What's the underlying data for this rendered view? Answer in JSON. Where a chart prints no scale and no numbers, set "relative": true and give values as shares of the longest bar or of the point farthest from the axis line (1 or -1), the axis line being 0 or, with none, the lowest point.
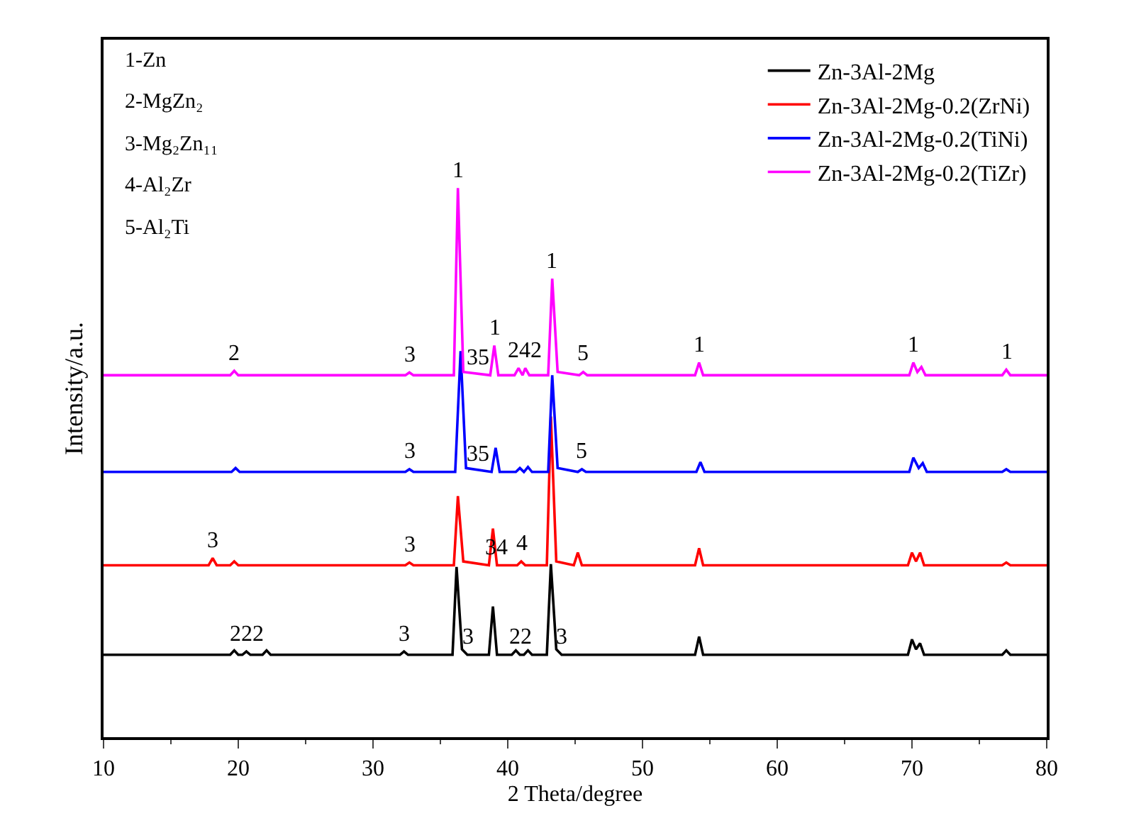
{
  "chart_data": {
    "type": "line",
    "relative": true,
    "xlabel": "2 Theta/degree",
    "ylabel": "Intensity/a.u.",
    "xlim": [
      10,
      80
    ],
    "xticks": [
      10,
      20,
      30,
      40,
      50,
      60,
      70,
      80
    ],
    "grid": false,
    "legend": "top right",
    "marker": "none",
    "line_style": "solid",
    "series": [
      {
        "name": "Zn-3Al-2Mg",
        "color": "#000000",
        "x": [
          10,
          19.4,
          19.7,
          20.0,
          20.3,
          20.6,
          20.9,
          21.8,
          22.1,
          22.4,
          32.0,
          32.3,
          32.6,
          35.9,
          36.2,
          36.6,
          37.0,
          38.6,
          38.9,
          39.2,
          40.3,
          40.6,
          40.9,
          41.2,
          41.5,
          41.8,
          42.9,
          43.2,
          43.6,
          44.0,
          53.9,
          54.2,
          54.5,
          69.7,
          70.0,
          70.3,
          70.6,
          70.9,
          76.7,
          77.0,
          77.3,
          80
        ],
        "values": [
          0.15,
          0.15,
          0.158,
          0.15,
          0.15,
          0.156,
          0.15,
          0.15,
          0.158,
          0.15,
          0.15,
          0.156,
          0.15,
          0.15,
          0.31,
          0.16,
          0.15,
          0.15,
          0.238,
          0.15,
          0.15,
          0.158,
          0.15,
          0.15,
          0.158,
          0.15,
          0.15,
          0.315,
          0.16,
          0.15,
          0.15,
          0.183,
          0.15,
          0.15,
          0.178,
          0.16,
          0.171,
          0.15,
          0.15,
          0.158,
          0.15,
          0.15
        ]
      },
      {
        "name": "Zn-3Al-2Mg-0.2(ZrNi)",
        "color": "#ff0000",
        "x": [
          10,
          17.8,
          18.1,
          18.4,
          19.4,
          19.7,
          20.0,
          32.4,
          32.7,
          33.0,
          36.0,
          36.3,
          36.7,
          38.6,
          38.9,
          39.2,
          40.7,
          41.0,
          41.3,
          42.9,
          43.2,
          43.6,
          44.9,
          45.2,
          45.5,
          53.9,
          54.2,
          54.5,
          69.7,
          70.0,
          70.3,
          70.6,
          70.9,
          76.7,
          77.0,
          77.3,
          80
        ],
        "values": [
          0.313,
          0.313,
          0.326,
          0.313,
          0.313,
          0.32,
          0.313,
          0.313,
          0.318,
          0.313,
          0.313,
          0.439,
          0.32,
          0.313,
          0.38,
          0.313,
          0.313,
          0.32,
          0.313,
          0.313,
          0.584,
          0.32,
          0.313,
          0.336,
          0.313,
          0.313,
          0.344,
          0.313,
          0.313,
          0.336,
          0.32,
          0.336,
          0.313,
          0.313,
          0.318,
          0.313,
          0.313
        ]
      },
      {
        "name": "Zn-3Al-2Mg-0.2(TiNi)",
        "color": "#0000ff",
        "x": [
          10,
          19.5,
          19.8,
          20.1,
          32.4,
          32.7,
          33.0,
          36.1,
          36.5,
          36.9,
          38.8,
          39.1,
          39.4,
          40.6,
          40.9,
          41.2,
          41.5,
          41.8,
          43.0,
          43.3,
          43.7,
          45.2,
          45.5,
          45.8,
          54.0,
          54.3,
          54.6,
          69.8,
          70.1,
          70.5,
          70.8,
          71.1,
          76.7,
          77.0,
          77.3,
          80
        ],
        "values": [
          0.483,
          0.483,
          0.49,
          0.483,
          0.483,
          0.488,
          0.483,
          0.483,
          0.703,
          0.49,
          0.483,
          0.527,
          0.483,
          0.483,
          0.49,
          0.483,
          0.492,
          0.483,
          0.483,
          0.659,
          0.49,
          0.483,
          0.488,
          0.483,
          0.483,
          0.501,
          0.483,
          0.483,
          0.509,
          0.49,
          0.499,
          0.483,
          0.483,
          0.488,
          0.483,
          0.483
        ]
      },
      {
        "name": "Zn-3Al-2Mg-0.2(TiZr)",
        "color": "#ff00ff",
        "x": [
          10,
          19.4,
          19.7,
          20.0,
          32.4,
          32.7,
          33.0,
          36.0,
          36.3,
          36.7,
          38.7,
          39.0,
          39.3,
          40.5,
          40.8,
          41.1,
          41.3,
          41.6,
          43.0,
          43.3,
          43.7,
          45.3,
          45.6,
          45.9,
          53.9,
          54.2,
          54.5,
          69.8,
          70.1,
          70.4,
          70.7,
          71.0,
          76.7,
          77.0,
          77.3,
          80
        ],
        "values": [
          0.659,
          0.659,
          0.667,
          0.659,
          0.659,
          0.664,
          0.659,
          0.659,
          1,
          0.665,
          0.659,
          0.713,
          0.659,
          0.659,
          0.672,
          0.659,
          0.672,
          0.659,
          0.659,
          0.835,
          0.665,
          0.659,
          0.665,
          0.659,
          0.659,
          0.682,
          0.659,
          0.659,
          0.682,
          0.665,
          0.674,
          0.659,
          0.659,
          0.669,
          0.659,
          0.659
        ]
      }
    ],
    "annotations": [
      "1-Zn",
      "2-MgZn₂",
      "3-Mg₂Zn₁₁",
      "4-Al₂Zr",
      "5-Al₂Ti",
      {
        "text": "2",
        "x": 19.7,
        "y": 0.667
      },
      {
        "text": "3",
        "x": 32.7,
        "y": 0.664
      },
      {
        "text": "1",
        "x": 36.3,
        "y": 1
      },
      {
        "text": "35",
        "x": 37.8,
        "y": 0.659
      },
      {
        "text": "1",
        "x": 39.0,
        "y": 0.713
      },
      {
        "text": "242",
        "x": 41.3,
        "y": 0.672
      },
      {
        "text": "1",
        "x": 43.3,
        "y": 0.835
      },
      {
        "text": "5",
        "x": 45.6,
        "y": 0.665
      },
      {
        "text": "1",
        "x": 54.2,
        "y": 0.682
      },
      {
        "text": "1",
        "x": 70.1,
        "y": 0.682
      },
      {
        "text": "1",
        "x": 77.0,
        "y": 0.669
      },
      {
        "text": "3",
        "x": 32.7,
        "y": 0.488
      },
      {
        "text": "35",
        "x": 37.8,
        "y": 0.483
      },
      {
        "text": "5",
        "x": 45.5,
        "y": 0.488
      },
      {
        "text": "3",
        "x": 18.1,
        "y": 0.326
      },
      {
        "text": "3",
        "x": 32.7,
        "y": 0.318
      },
      {
        "text": "34",
        "x": 39.2,
        "y": 0.313
      },
      {
        "text": "4",
        "x": 41.0,
        "y": 0.32
      },
      {
        "text": "222",
        "x": 20.6,
        "y": 0.156
      },
      {
        "text": "3",
        "x": 32.3,
        "y": 0.156
      },
      {
        "text": "3",
        "x": 37.0,
        "y": 0.15
      },
      {
        "text": "22",
        "x": 40.9,
        "y": 0.15
      },
      {
        "text": "3",
        "x": 44.0,
        "y": 0.15
      }
    ]
  }
}
